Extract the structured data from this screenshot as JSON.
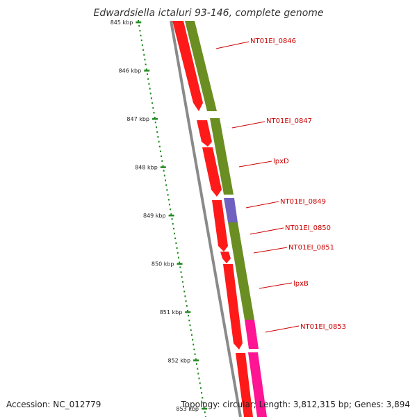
{
  "title": "Edwardsiella ictaluri 93-146, complete genome",
  "footer": {
    "accession": "Accession: NC_012779",
    "summary": "Topology: circular; Length: 3,812,315 bp; Genes: 3,894"
  },
  "colors": {
    "forward_cds": "#ff1a1a",
    "reverse_cds": "#6b8e23",
    "hypothetical": "#7060c0",
    "rna": "#ff1493",
    "backbone": "#8a8a8a",
    "tick": "#228b22",
    "label": "#cc0000"
  },
  "scale": {
    "unit": "kbp",
    "ticks": [
      "845 kbp",
      "846 kbp",
      "847 kbp",
      "848 kbp",
      "849 kbp",
      "850 kbp",
      "851 kbp",
      "852 kbp",
      "853 kbp"
    ]
  },
  "genes": [
    {
      "label": "NT01EI_0846"
    },
    {
      "label": "NT01EI_0847"
    },
    {
      "label": "lpxD"
    },
    {
      "label": "NT01EI_0849"
    },
    {
      "label": "NT01EI_0850"
    },
    {
      "label": "NT01EI_0851"
    },
    {
      "label": "lpxB"
    },
    {
      "label": "NT01EI_0853"
    }
  ]
}
